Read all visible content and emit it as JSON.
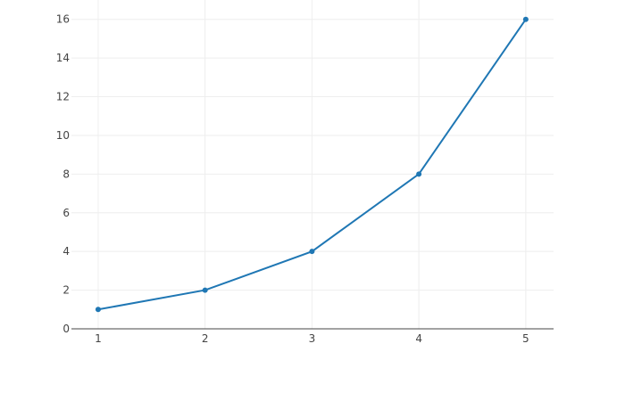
{
  "chart_data": {
    "type": "line",
    "title": "",
    "xlabel": "",
    "ylabel": "",
    "x": [
      1,
      2,
      3,
      4,
      5
    ],
    "series": [
      {
        "values": [
          1,
          2,
          4,
          8,
          16
        ],
        "color": "#1f77b4",
        "mode": "lines+markers"
      }
    ],
    "xlim": [
      0.75,
      5.26
    ],
    "ylim": [
      0,
      17.0
    ],
    "xticks": [
      "1",
      "2",
      "3",
      "4",
      "5"
    ],
    "yticks": [
      "0",
      "2",
      "4",
      "6",
      "8",
      "10",
      "12",
      "14",
      "16"
    ],
    "grid": true,
    "gridcolor": "#eeeeee",
    "legend": "none"
  }
}
